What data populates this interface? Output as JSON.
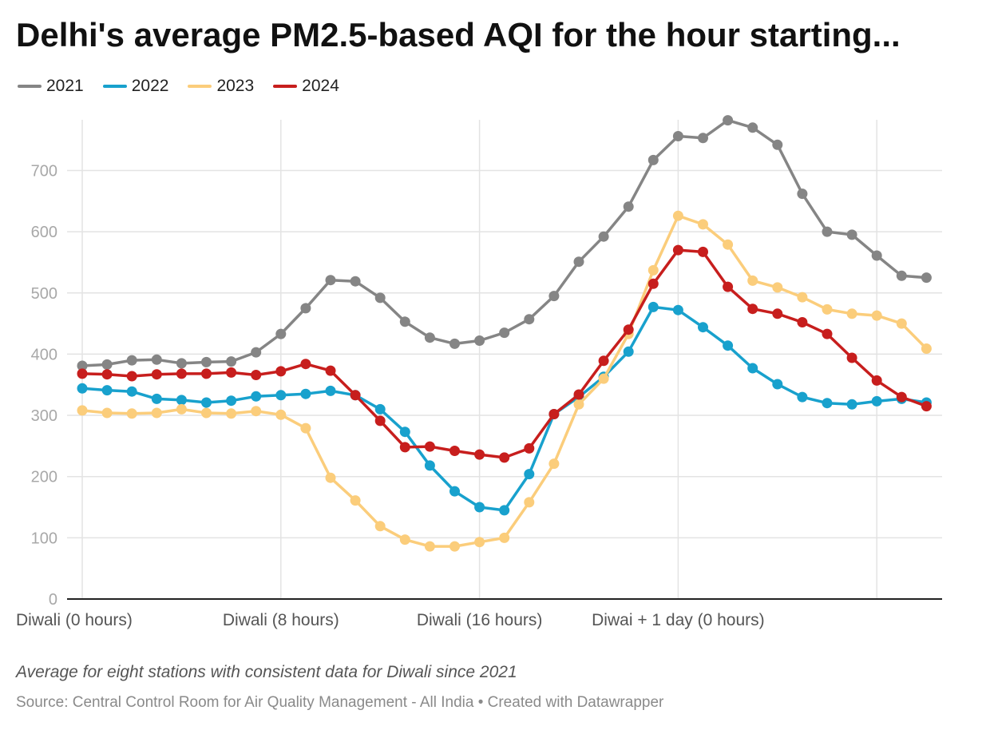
{
  "title": "Delhi's average PM2.5-based AQI for the hour starting...",
  "notes": "Average for eight stations with consistent data for Diwali since 2021",
  "footer": "Source: Central Control Room for Air Quality Management - All India • Created with Datawrapper",
  "chart_data": {
    "type": "line",
    "title": "Delhi's average PM2.5-based AQI for the hour starting...",
    "xlabel": "",
    "ylabel": "",
    "ylim": [
      0,
      780
    ],
    "yticks": [
      0,
      100,
      200,
      300,
      400,
      500,
      600,
      700
    ],
    "grid": true,
    "legend_position": "top-left",
    "x": [
      0,
      1,
      2,
      3,
      4,
      5,
      6,
      7,
      8,
      9,
      10,
      11,
      12,
      13,
      14,
      15,
      16,
      17,
      18,
      19,
      20,
      21,
      22,
      23,
      24,
      25,
      26,
      27,
      28,
      29,
      30,
      31,
      32,
      33,
      34,
      35
    ],
    "xticks": [
      {
        "x": 0,
        "label": "Diwali (0 hours)"
      },
      {
        "x": 8,
        "label": "Diwali (8 hours)"
      },
      {
        "x": 16,
        "label": "Diwali (16 hours)"
      },
      {
        "x": 24,
        "label": "Diwai + 1 day (0 hours)"
      },
      {
        "x": 32,
        "label": ""
      }
    ],
    "series": [
      {
        "name": "2021",
        "color": "#858585",
        "values": [
          381,
          383,
          390,
          391,
          385,
          387,
          388,
          403,
          433,
          475,
          521,
          519,
          492,
          453,
          427,
          417,
          422,
          435,
          457,
          495,
          551,
          592,
          641,
          717,
          756,
          753,
          782,
          770,
          742,
          662,
          600,
          595,
          561,
          528,
          525,
          null
        ]
      },
      {
        "name": "2022",
        "color": "#18a1cd",
        "values": [
          344,
          341,
          339,
          327,
          325,
          321,
          324,
          331,
          333,
          335,
          340,
          333,
          310,
          273,
          218,
          176,
          150,
          145,
          204,
          302,
          330,
          363,
          404,
          477,
          472,
          444,
          414,
          377,
          351,
          330,
          320,
          318,
          323,
          327,
          321,
          null
        ]
      },
      {
        "name": "2023",
        "color": "#fbcd7b",
        "values": [
          308,
          304,
          303,
          304,
          310,
          304,
          303,
          307,
          301,
          279,
          198,
          161,
          119,
          97,
          86,
          86,
          93,
          100,
          158,
          221,
          318,
          360,
          433,
          537,
          626,
          612,
          579,
          520,
          509,
          493,
          473,
          466,
          463,
          450,
          409,
          null
        ]
      },
      {
        "name": "2024",
        "color": "#c71e1d",
        "values": [
          368,
          367,
          364,
          367,
          368,
          368,
          370,
          366,
          372,
          384,
          373,
          333,
          291,
          248,
          249,
          242,
          236,
          231,
          246,
          302,
          334,
          389,
          440,
          515,
          570,
          567,
          510,
          474,
          466,
          452,
          433,
          394,
          357,
          330,
          315,
          null
        ]
      }
    ]
  }
}
